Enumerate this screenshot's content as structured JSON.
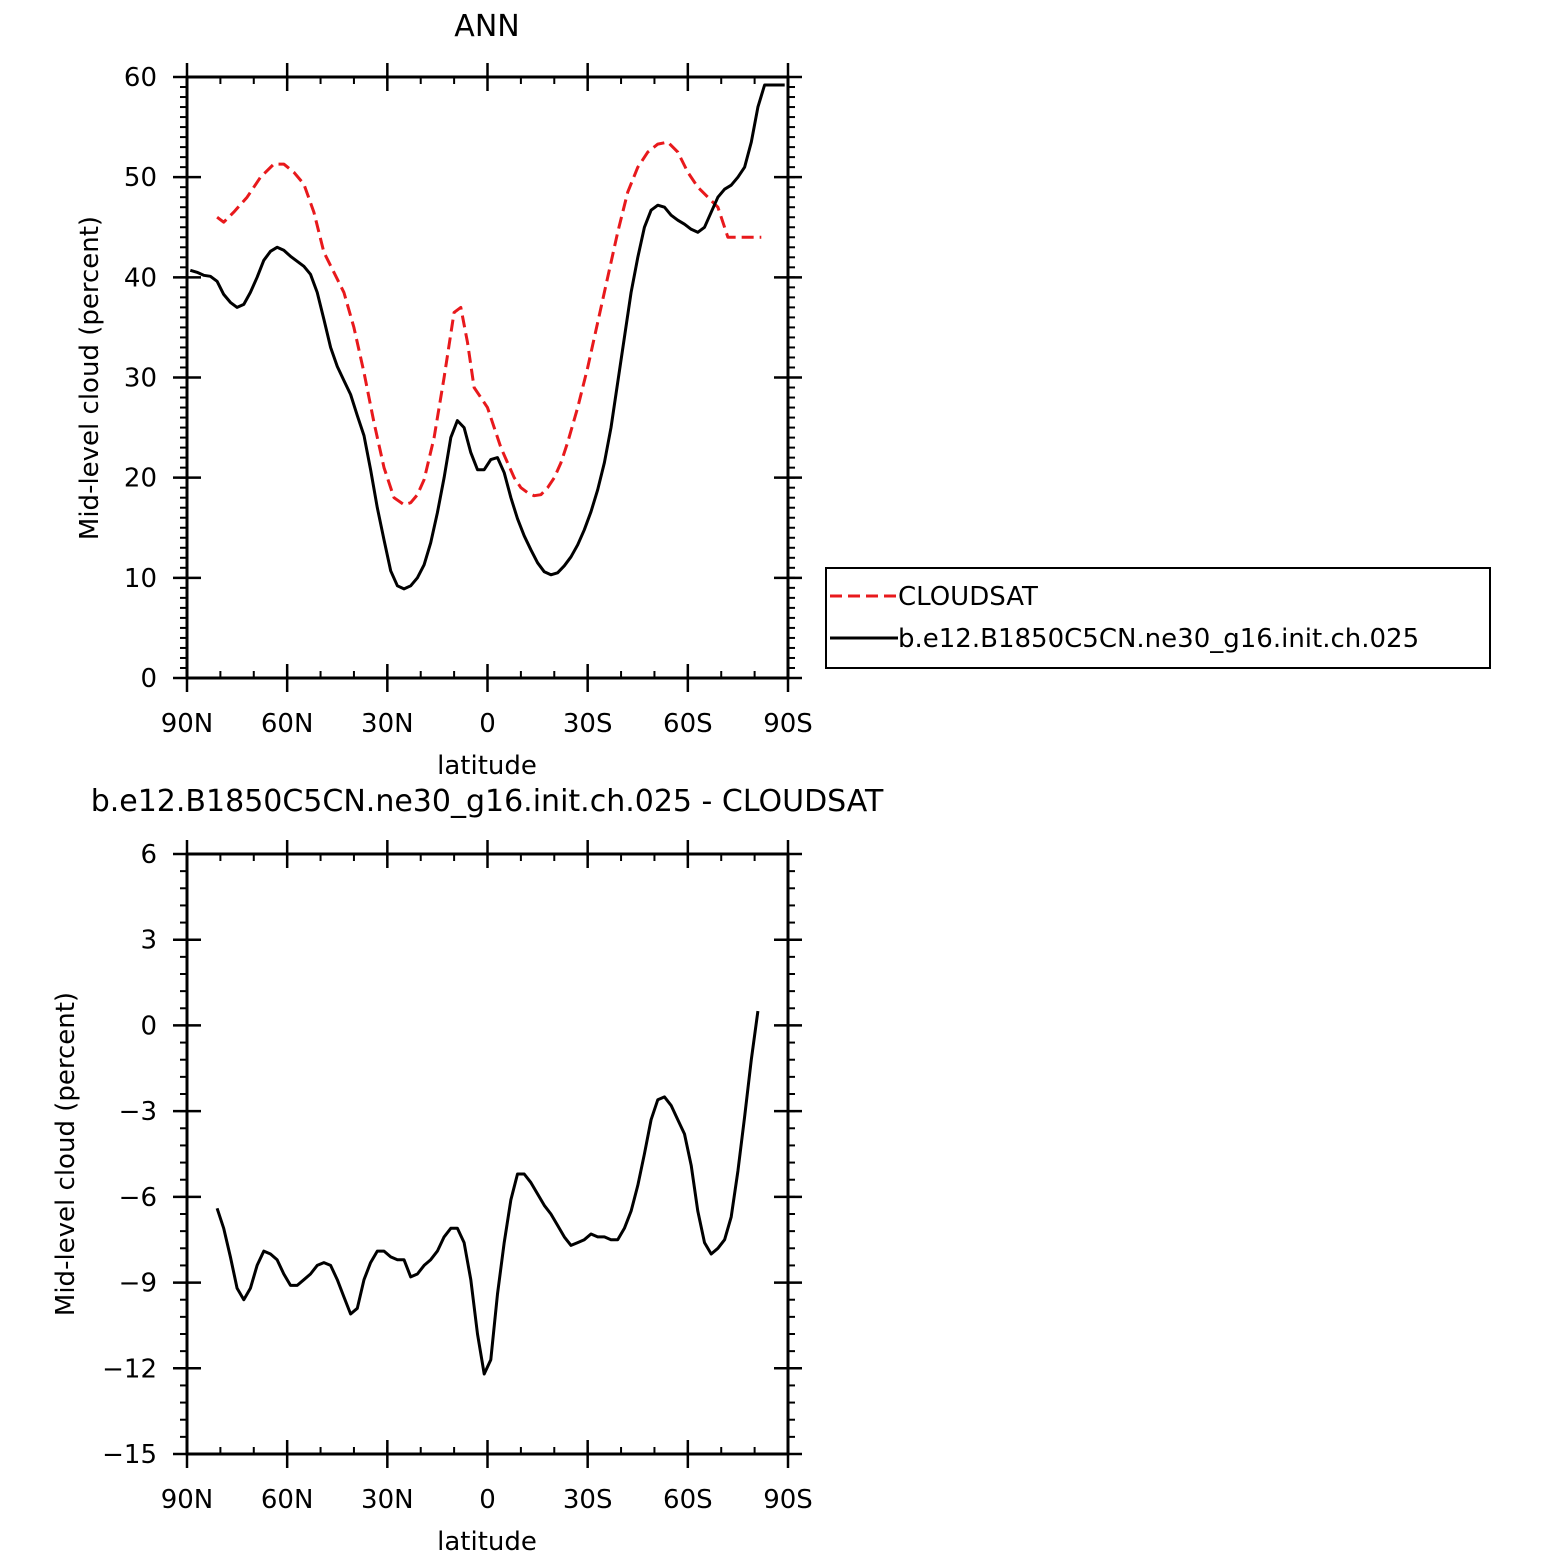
{
  "chart_data": [
    {
      "type": "line",
      "title": "ANN",
      "xlabel": "latitude",
      "ylabel": "Mid-level cloud (percent)",
      "xlim": [
        -90,
        90
      ],
      "ylim": [
        0,
        60
      ],
      "x_ticks": [
        {
          "value": -90,
          "label": "90N"
        },
        {
          "value": -60,
          "label": "60N"
        },
        {
          "value": -30,
          "label": "30N"
        },
        {
          "value": 0,
          "label": "0"
        },
        {
          "value": 30,
          "label": "30S"
        },
        {
          "value": 60,
          "label": "60S"
        },
        {
          "value": 90,
          "label": "90S"
        }
      ],
      "y_ticks": [
        {
          "value": 0,
          "label": "0"
        },
        {
          "value": 10,
          "label": "10"
        },
        {
          "value": 20,
          "label": "20"
        },
        {
          "value": 30,
          "label": "30"
        },
        {
          "value": 40,
          "label": "40"
        },
        {
          "value": 50,
          "label": "50"
        },
        {
          "value": 60,
          "label": "60"
        }
      ],
      "legend_position": "right",
      "series": [
        {
          "name": "CLOUDSAT",
          "color": "#e8191c",
          "dash": "dashed",
          "x": [
            -81,
            -79,
            -76,
            -72,
            -68,
            -64,
            -61,
            -58,
            -55,
            -52,
            -49,
            -46,
            -43,
            -40,
            -37,
            -34,
            -31,
            -28,
            -25,
            -23,
            -21,
            -19,
            -16,
            -13,
            -10,
            -8,
            -6,
            -4,
            -2,
            0,
            2,
            4,
            6,
            8,
            10,
            12,
            14,
            16,
            18,
            20,
            22,
            24,
            27,
            30,
            33,
            36,
            39,
            42,
            45,
            48,
            51,
            54,
            57,
            60,
            63,
            66,
            69,
            72,
            75,
            78,
            80,
            82
          ],
          "y": [
            46.0,
            45.5,
            46.5,
            48.0,
            50.0,
            51.3,
            51.3,
            50.5,
            49.3,
            46.5,
            42.5,
            40.5,
            38.5,
            35.0,
            30.5,
            25.5,
            21.0,
            18.0,
            17.3,
            17.5,
            18.3,
            19.8,
            24.0,
            30.0,
            36.5,
            37.0,
            33.5,
            29.0,
            28.0,
            27.0,
            25.0,
            23.0,
            21.5,
            20.0,
            19.0,
            18.5,
            18.2,
            18.3,
            19.0,
            20.0,
            21.5,
            23.5,
            27.0,
            31.0,
            35.5,
            40.0,
            44.5,
            48.5,
            51.0,
            52.5,
            53.3,
            53.5,
            52.5,
            50.5,
            49.0,
            48.0,
            47.0,
            44.0,
            44.0,
            44.0,
            44.0,
            44.0
          ]
        },
        {
          "name": "b.e12.B1850C5CN.ne30_g16.init.ch.025",
          "color": "#000000",
          "dash": "solid",
          "x": [
            -89,
            -87,
            -85,
            -83,
            -81,
            -79,
            -77,
            -75,
            -73,
            -71,
            -69,
            -67,
            -65,
            -63,
            -61,
            -59,
            -57,
            -55,
            -53,
            -51,
            -49,
            -47,
            -45,
            -43,
            -41,
            -39,
            -37,
            -35,
            -33,
            -31,
            -29,
            -27,
            -25,
            -23,
            -21,
            -19,
            -17,
            -15,
            -13,
            -11,
            -9,
            -7,
            -5,
            -3,
            -1,
            1,
            3,
            5,
            7,
            9,
            11,
            13,
            15,
            17,
            19,
            21,
            23,
            25,
            27,
            29,
            31,
            33,
            35,
            37,
            39,
            41,
            43,
            45,
            47,
            49,
            51,
            53,
            55,
            57,
            59,
            61,
            63,
            65,
            67,
            69,
            71,
            73,
            75,
            77,
            79,
            81,
            83,
            85,
            87,
            89
          ],
          "y": [
            40.7,
            40.5,
            40.2,
            40.1,
            39.6,
            38.3,
            37.5,
            37.0,
            37.3,
            38.5,
            40.0,
            41.7,
            42.6,
            43.0,
            42.7,
            42.1,
            41.6,
            41.1,
            40.3,
            38.5,
            35.8,
            33.0,
            31.1,
            29.7,
            28.3,
            26.2,
            24.2,
            20.8,
            17.0,
            13.8,
            10.7,
            9.2,
            8.9,
            9.2,
            10.0,
            11.3,
            13.5,
            16.5,
            20.0,
            24.0,
            25.7,
            25.0,
            22.5,
            20.8,
            20.8,
            21.8,
            22.0,
            20.5,
            18.0,
            15.9,
            14.2,
            12.8,
            11.5,
            10.6,
            10.3,
            10.5,
            11.2,
            12.1,
            13.3,
            14.8,
            16.6,
            18.8,
            21.5,
            25.0,
            29.5,
            34.0,
            38.5,
            42.0,
            45.0,
            46.7,
            47.2,
            47.0,
            46.2,
            45.7,
            45.3,
            44.8,
            44.5,
            45.0,
            46.5,
            48.0,
            48.8,
            49.2,
            50.0,
            51.0,
            53.5,
            57.0,
            59.2,
            59.2,
            59.2,
            59.2
          ]
        }
      ]
    },
    {
      "type": "line",
      "title": "b.e12.B1850C5CN.ne30_g16.init.ch.025 - CLOUDSAT",
      "xlabel": "latitude",
      "ylabel": "Mid-level cloud (percent)",
      "xlim": [
        -90,
        90
      ],
      "ylim": [
        -15,
        6
      ],
      "x_ticks": [
        {
          "value": -90,
          "label": "90N"
        },
        {
          "value": -60,
          "label": "60N"
        },
        {
          "value": -30,
          "label": "30N"
        },
        {
          "value": 0,
          "label": "0"
        },
        {
          "value": 30,
          "label": "30S"
        },
        {
          "value": 60,
          "label": "60S"
        },
        {
          "value": 90,
          "label": "90S"
        }
      ],
      "y_ticks": [
        {
          "value": -15,
          "label": "−15"
        },
        {
          "value": -12,
          "label": "−12"
        },
        {
          "value": -9,
          "label": "−9"
        },
        {
          "value": -6,
          "label": "−6"
        },
        {
          "value": -3,
          "label": "−3"
        },
        {
          "value": 0,
          "label": "0"
        },
        {
          "value": 3,
          "label": "3"
        },
        {
          "value": 6,
          "label": "6"
        }
      ],
      "series": [
        {
          "color": "#000000",
          "dash": "solid",
          "x": [
            -81,
            -79,
            -77,
            -75,
            -73,
            -71,
            -69,
            -67,
            -65,
            -63,
            -61,
            -59,
            -57,
            -55,
            -53,
            -51,
            -49,
            -47,
            -45,
            -43,
            -41,
            -39,
            -37,
            -35,
            -33,
            -31,
            -29,
            -27,
            -25,
            -23,
            -21,
            -19,
            -17,
            -15,
            -13,
            -11,
            -9,
            -7,
            -5,
            -3,
            -1,
            1,
            3,
            5,
            7,
            9,
            11,
            13,
            15,
            17,
            19,
            21,
            23,
            25,
            27,
            29,
            31,
            33,
            35,
            37,
            39,
            41,
            43,
            45,
            47,
            49,
            51,
            53,
            55,
            57,
            59,
            61,
            63,
            65,
            67,
            69,
            71,
            73,
            75,
            77,
            79,
            81
          ],
          "y": [
            -6.4,
            -7.1,
            -8.1,
            -9.2,
            -9.6,
            -9.2,
            -8.4,
            -7.9,
            -8.0,
            -8.2,
            -8.7,
            -9.1,
            -9.1,
            -8.9,
            -8.7,
            -8.4,
            -8.3,
            -8.4,
            -8.9,
            -9.5,
            -10.1,
            -9.9,
            -8.9,
            -8.3,
            -7.9,
            -7.9,
            -8.1,
            -8.2,
            -8.2,
            -8.8,
            -8.7,
            -8.4,
            -8.2,
            -7.9,
            -7.4,
            -7.1,
            -7.1,
            -7.6,
            -8.9,
            -10.8,
            -12.2,
            -11.7,
            -9.4,
            -7.6,
            -6.1,
            -5.2,
            -5.2,
            -5.5,
            -5.9,
            -6.3,
            -6.6,
            -7.0,
            -7.4,
            -7.7,
            -7.6,
            -7.5,
            -7.3,
            -7.4,
            -7.4,
            -7.5,
            -7.5,
            -7.1,
            -6.5,
            -5.6,
            -4.5,
            -3.3,
            -2.6,
            -2.5,
            -2.8,
            -3.3,
            -3.8,
            -4.9,
            -6.5,
            -7.6,
            -8.0,
            -7.8,
            -7.5,
            -6.7,
            -5.1,
            -3.2,
            -1.2,
            0.5
          ]
        }
      ]
    }
  ]
}
